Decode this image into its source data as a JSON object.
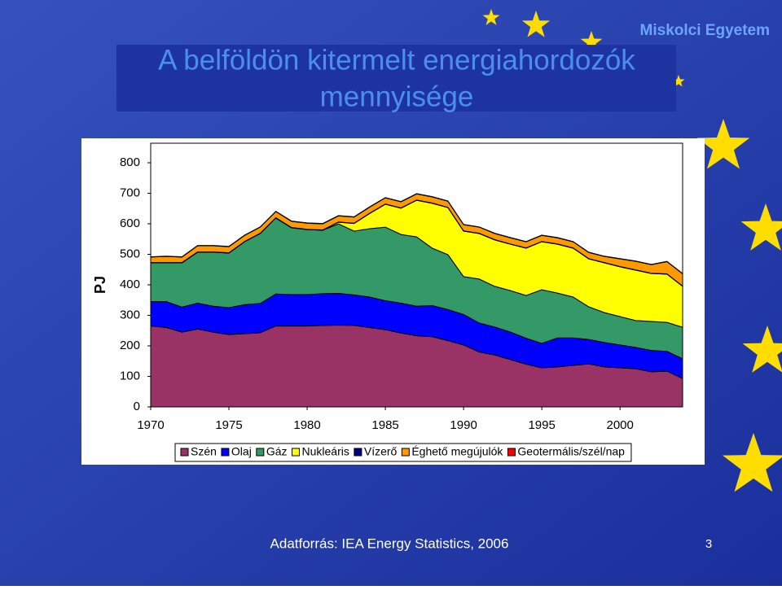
{
  "header": {
    "institution": "Miskolci Egyetem",
    "title_line1": "A belföldön kitermelt energiahordozók",
    "title_line2": "mennyisége"
  },
  "chart_data": {
    "type": "stacked_area",
    "y_label": "PJ",
    "x": [
      1970,
      1971,
      1972,
      1973,
      1974,
      1975,
      1976,
      1977,
      1978,
      1979,
      1980,
      1981,
      1982,
      1983,
      1984,
      1985,
      1986,
      1987,
      1988,
      1989,
      1990,
      1991,
      1992,
      1993,
      1994,
      1995,
      1996,
      1997,
      1998,
      1999,
      2000,
      2001,
      2002,
      2003,
      2004
    ],
    "xlim": [
      1970,
      2004
    ],
    "xticks": [
      1970,
      1975,
      1980,
      1985,
      1990,
      1995,
      2000
    ],
    "ylim": [
      0,
      800
    ],
    "yticks": [
      0,
      100,
      200,
      300,
      400,
      500,
      600,
      700,
      800
    ],
    "series": [
      {
        "name": "Szén",
        "color": "#993366",
        "values": [
          265,
          260,
          245,
          255,
          245,
          237,
          240,
          243,
          265,
          265,
          265,
          267,
          268,
          267,
          260,
          253,
          242,
          233,
          230,
          217,
          203,
          180,
          170,
          155,
          140,
          128,
          131,
          136,
          141,
          131,
          128,
          125,
          115,
          117,
          93
        ]
      },
      {
        "name": "Olaj",
        "color": "#0000ff",
        "values": [
          80,
          85,
          82,
          85,
          85,
          88,
          95,
          96,
          105,
          103,
          103,
          104,
          104,
          100,
          100,
          95,
          98,
          97,
          102,
          102,
          100,
          95,
          92,
          90,
          85,
          80,
          95,
          90,
          80,
          80,
          75,
          70,
          70,
          65,
          65
        ]
      },
      {
        "name": "Gáz",
        "color": "#339966",
        "values": [
          127,
          127,
          145,
          167,
          177,
          179,
          206,
          229,
          249,
          219,
          213,
          208,
          228,
          209,
          224,
          241,
          225,
          227,
          188,
          180,
          124,
          144,
          133,
          136,
          140,
          176,
          147,
          134,
          107,
          98,
          93,
          88,
          95,
          95,
          103
        ]
      },
      {
        "name": "Nukleáris",
        "color": "#ffff00",
        "values": [
          0,
          0,
          0,
          0,
          0,
          0,
          0,
          0,
          0,
          0,
          0,
          0,
          5,
          25,
          50,
          75,
          86,
          120,
          147,
          154,
          149,
          149,
          152,
          152,
          155,
          157,
          160,
          160,
          157,
          163,
          163,
          165,
          157,
          158,
          134
        ]
      },
      {
        "name": "Vízerő",
        "color": "#000080",
        "values": [
          1,
          1,
          1,
          1,
          1,
          1,
          1,
          1,
          1,
          1,
          1,
          1,
          1,
          1,
          1,
          1,
          1,
          1,
          1,
          1,
          1,
          1,
          1,
          1,
          1,
          1,
          1,
          1,
          1,
          1,
          1,
          1,
          1,
          1,
          1
        ]
      },
      {
        "name": "Éghető megújulók",
        "color": "#ff9900",
        "values": [
          18,
          20,
          18,
          20,
          20,
          20,
          20,
          20,
          20,
          20,
          20,
          20,
          20,
          20,
          20,
          20,
          20,
          20,
          20,
          20,
          20,
          20,
          20,
          20,
          20,
          20,
          20,
          20,
          20,
          20,
          25,
          28,
          28,
          40,
          40
        ]
      },
      {
        "name": "Geotermális/szél/nap",
        "color": "#ff0000",
        "values": [
          1,
          1,
          1,
          1,
          1,
          1,
          1,
          1,
          1,
          1,
          1,
          1,
          1,
          1,
          1,
          1,
          1,
          1,
          1,
          1,
          1,
          1,
          1,
          1,
          1,
          1,
          1,
          1,
          1,
          1,
          1,
          1,
          1,
          1,
          1
        ]
      }
    ]
  },
  "footer": {
    "source": "Adatforrás: IEA Energy Statistics, 2006",
    "page": "3"
  }
}
